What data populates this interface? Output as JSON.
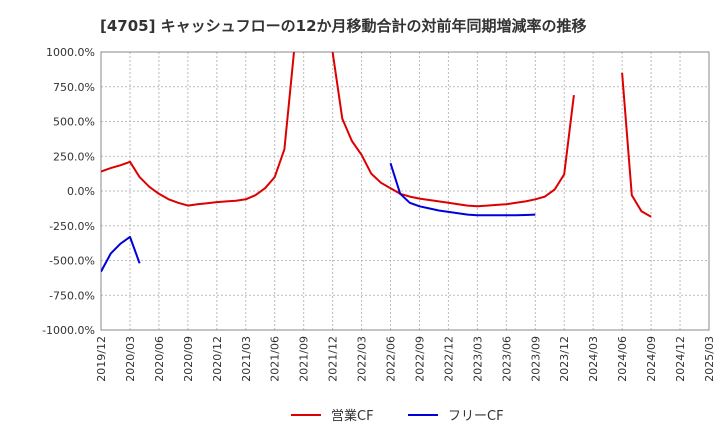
{
  "chart_data": {
    "type": "line",
    "title": "[4705]  キャッシュフローの12か月移動合計の対前年同期増減率の推移",
    "xlabel": "",
    "ylabel": "",
    "ylim": [
      -1000,
      1000
    ],
    "y_ticks": [
      "1000.0%",
      "750.0%",
      "500.0%",
      "250.0%",
      "0.0%",
      "-250.0%",
      "-500.0%",
      "-750.0%",
      "-1000.0%"
    ],
    "y_tick_values": [
      1000,
      750,
      500,
      250,
      0,
      -250,
      -500,
      -750,
      -1000
    ],
    "x_ticks": [
      "2019/12",
      "2020/03",
      "2020/06",
      "2020/09",
      "2020/12",
      "2021/03",
      "2021/06",
      "2021/09",
      "2021/12",
      "2022/03",
      "2022/06",
      "2022/09",
      "2022/12",
      "2023/03",
      "2023/06",
      "2023/09",
      "2023/12",
      "2024/03",
      "2024/06",
      "2024/09",
      "2024/12",
      "2025/03"
    ],
    "grid": true,
    "legend_position": "bottom",
    "series": [
      {
        "name": "営業CF",
        "color": "#dd0000",
        "points": [
          [
            "2019/12",
            140
          ],
          [
            "2020/01",
            165
          ],
          [
            "2020/02",
            185
          ],
          [
            "2020/03",
            210
          ],
          [
            "2020/04",
            100
          ],
          [
            "2020/05",
            30
          ],
          [
            "2020/06",
            -20
          ],
          [
            "2020/07",
            -60
          ],
          [
            "2020/08",
            -85
          ],
          [
            "2020/09",
            -105
          ],
          [
            "2020/10",
            -95
          ],
          [
            "2020/11",
            -88
          ],
          [
            "2020/12",
            -80
          ],
          [
            "2021/01",
            -75
          ],
          [
            "2021/02",
            -70
          ],
          [
            "2021/03",
            -60
          ],
          [
            "2021/04",
            -30
          ],
          [
            "2021/05",
            20
          ],
          [
            "2021/06",
            100
          ],
          [
            "2021/07",
            300
          ],
          [
            "2021/08",
            1000
          ],
          [
            "2021/09",
            null
          ],
          [
            "2021/10",
            null
          ],
          [
            "2021/11",
            null
          ],
          [
            "2021/12",
            1000
          ],
          [
            "2022/01",
            520
          ],
          [
            "2022/02",
            360
          ],
          [
            "2022/03",
            260
          ],
          [
            "2022/04",
            125
          ],
          [
            "2022/05",
            60
          ],
          [
            "2022/06",
            20
          ],
          [
            "2022/07",
            -20
          ],
          [
            "2022/08",
            -40
          ],
          [
            "2022/09",
            -55
          ],
          [
            "2022/10",
            -65
          ],
          [
            "2022/11",
            -75
          ],
          [
            "2022/12",
            -85
          ],
          [
            "2023/01",
            -95
          ],
          [
            "2023/02",
            -105
          ],
          [
            "2023/03",
            -110
          ],
          [
            "2023/04",
            -105
          ],
          [
            "2023/05",
            -100
          ],
          [
            "2023/06",
            -95
          ],
          [
            "2023/07",
            -85
          ],
          [
            "2023/08",
            -75
          ],
          [
            "2023/09",
            -60
          ],
          [
            "2023/10",
            -40
          ],
          [
            "2023/11",
            10
          ],
          [
            "2023/12",
            120
          ],
          [
            "2024/01",
            690
          ],
          [
            "2024/02",
            null
          ],
          [
            "2024/03",
            null
          ],
          [
            "2024/04",
            null
          ],
          [
            "2024/05",
            null
          ],
          [
            "2024/06",
            850
          ],
          [
            "2024/07",
            -30
          ],
          [
            "2024/08",
            -145
          ],
          [
            "2024/09",
            -185
          ]
        ]
      },
      {
        "name": "フリーCF",
        "color": "#0000dd",
        "points": [
          [
            "2019/12",
            -580
          ],
          [
            "2020/01",
            -450
          ],
          [
            "2020/02",
            -380
          ],
          [
            "2020/03",
            -330
          ],
          [
            "2020/04",
            -520
          ],
          [
            "2020/05",
            null
          ],
          [
            "2020/06",
            null
          ],
          [
            "2020/07",
            null
          ],
          [
            "2020/08",
            null
          ],
          [
            "2020/09",
            null
          ],
          [
            "2020/10",
            null
          ],
          [
            "2020/11",
            null
          ],
          [
            "2020/12",
            null
          ],
          [
            "2021/01",
            null
          ],
          [
            "2021/02",
            null
          ],
          [
            "2021/03",
            null
          ],
          [
            "2021/04",
            null
          ],
          [
            "2021/05",
            null
          ],
          [
            "2021/06",
            null
          ],
          [
            "2021/07",
            null
          ],
          [
            "2021/08",
            null
          ],
          [
            "2021/09",
            null
          ],
          [
            "2021/10",
            null
          ],
          [
            "2021/11",
            null
          ],
          [
            "2021/12",
            null
          ],
          [
            "2022/01",
            null
          ],
          [
            "2022/02",
            null
          ],
          [
            "2022/03",
            null
          ],
          [
            "2022/04",
            null
          ],
          [
            "2022/05",
            null
          ],
          [
            "2022/06",
            200
          ],
          [
            "2022/07",
            -20
          ],
          [
            "2022/08",
            -85
          ],
          [
            "2022/09",
            -110
          ],
          [
            "2022/10",
            -125
          ],
          [
            "2022/11",
            -140
          ],
          [
            "2022/12",
            -150
          ],
          [
            "2023/01",
            -160
          ],
          [
            "2023/02",
            -170
          ],
          [
            "2023/03",
            -175
          ],
          [
            "2023/04",
            -175
          ],
          [
            "2023/05",
            -175
          ],
          [
            "2023/06",
            -175
          ],
          [
            "2023/07",
            -175
          ],
          [
            "2023/08",
            -173
          ],
          [
            "2023/09",
            -170
          ]
        ]
      }
    ]
  }
}
